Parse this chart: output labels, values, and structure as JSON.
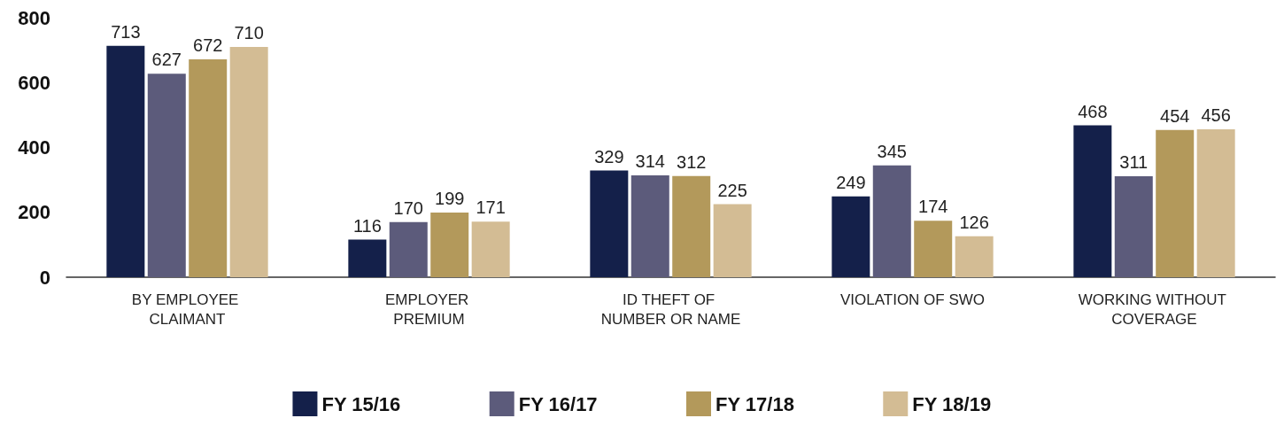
{
  "chart_data": {
    "type": "bar",
    "categories": [
      "BY EMPLOYEE CLAIMANT",
      "EMPLOYER PREMIUM",
      "ID THEFT OF NUMBER OR NAME",
      "VIOLATION OF SWO",
      "WORKING WITHOUT COVERAGE"
    ],
    "series": [
      {
        "name": "FY 15/16",
        "color": "#14204a",
        "values": [
          713,
          116,
          329,
          249,
          468
        ]
      },
      {
        "name": "FY 16/17",
        "color": "#5c5b7b",
        "values": [
          627,
          170,
          314,
          345,
          311
        ]
      },
      {
        "name": "FY 17/18",
        "color": "#b3995b",
        "values": [
          672,
          199,
          312,
          174,
          454
        ]
      },
      {
        "name": "FY 18/19",
        "color": "#d3bc94",
        "values": [
          710,
          171,
          225,
          126,
          456
        ]
      }
    ],
    "ylim": [
      0,
      800
    ],
    "yticks": [
      0,
      200,
      400,
      600,
      800
    ],
    "grid": false,
    "legend": "bottom",
    "data_labels": true
  }
}
